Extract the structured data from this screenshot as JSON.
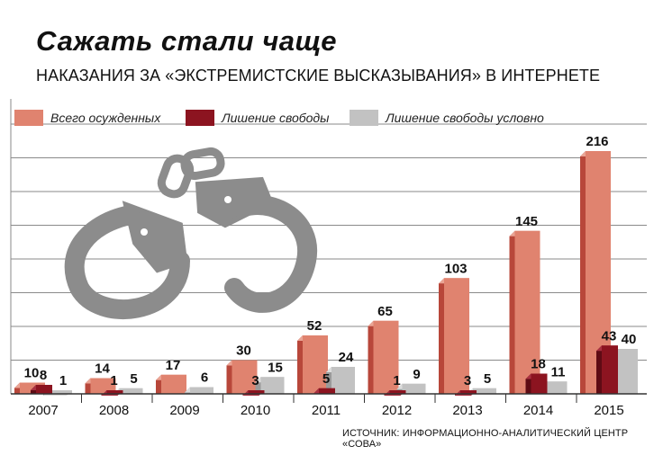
{
  "title": "Сажать стали чаще",
  "subtitle": "НАКАЗАНИЯ ЗА «ЭКСТРЕМИСТСКИЕ ВЫСКАЗЫВАНИЯ» В ИНТЕРНЕТЕ",
  "source": "ИСТОЧНИК: ИНФОРМАЦИОННО-АНАЛИТИЧЕСКИЙ ЦЕНТР «СОВА»",
  "colors": {
    "convicted": "#e0836f",
    "imprisonment": "#8c1420",
    "suspended": "#c2c2c2",
    "grid": "#8a8a8a",
    "handcuffs": "#8c8c8c"
  },
  "chart_data": {
    "type": "bar",
    "title": "Сажать стали чаще",
    "subtitle": "НАКАЗАНИЯ ЗА «ЭКСТРЕМИСТСКИЕ ВЫСКАЗЫВАНИЯ» В ИНТЕРНЕТЕ",
    "categories": [
      "2007",
      "2008",
      "2009",
      "2010",
      "2011",
      "2012",
      "2013",
      "2014",
      "2015"
    ],
    "series": [
      {
        "name": "Всего осужденных",
        "values": [
          10,
          14,
          17,
          30,
          52,
          65,
          103,
          145,
          216
        ]
      },
      {
        "name": "Лишение свободы",
        "values": [
          8,
          1,
          null,
          3,
          5,
          1,
          3,
          18,
          43
        ]
      },
      {
        "name": "Лишение свободы условно",
        "values": [
          1,
          5,
          6,
          15,
          24,
          9,
          5,
          11,
          40
        ]
      }
    ],
    "ylim": [
      0,
      240
    ],
    "grid": true,
    "legend": "top-left"
  }
}
